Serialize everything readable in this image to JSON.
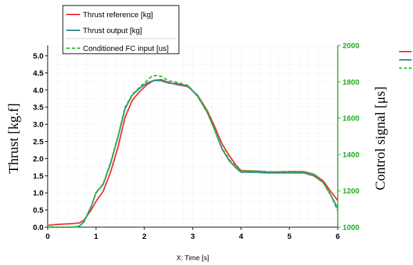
{
  "chart_data": {
    "type": "line",
    "xlabel": "X: Time [s]",
    "ylabel_left": "Thrust [kg.f]",
    "ylabel_right": "Control signal [μs]",
    "xlim": [
      0,
      6
    ],
    "ylim_left": [
      0,
      5.3
    ],
    "ylim_right": [
      1000,
      2000
    ],
    "x_ticks": [
      "0",
      "1",
      "2",
      "3",
      "4",
      "5",
      "6"
    ],
    "y_ticks_left": [
      "0.0",
      "0.5",
      "1.0",
      "1.5",
      "2.0",
      "2.5",
      "3.0",
      "3.5",
      "4.0",
      "4.5",
      "5.0"
    ],
    "y_ticks_right": [
      "1000",
      "1200",
      "1400",
      "1600",
      "1800",
      "2000"
    ],
    "grid": true,
    "legend_position": "top-left",
    "colors": {
      "reference": "#ee3333",
      "output": "#2e8b8b",
      "fc_input": "#33bb33",
      "right_axis": "#22aa22"
    },
    "series": [
      {
        "name": "Thrust reference [kg]",
        "axis": "left",
        "x": [
          0,
          0.2,
          0.5,
          0.65,
          0.75,
          0.9,
          1.0,
          1.15,
          1.3,
          1.45,
          1.6,
          1.75,
          1.9,
          2.05,
          2.2,
          2.35,
          2.5,
          2.7,
          2.9,
          3.1,
          3.3,
          3.45,
          3.6,
          3.75,
          3.9,
          4.0,
          4.3,
          4.6,
          5.0,
          5.3,
          5.5,
          5.7,
          5.85,
          6.0
        ],
        "y": [
          0.05,
          0.08,
          0.1,
          0.12,
          0.2,
          0.5,
          0.75,
          1.05,
          1.6,
          2.3,
          3.2,
          3.7,
          3.95,
          4.15,
          4.28,
          4.3,
          4.22,
          4.15,
          4.1,
          3.85,
          3.4,
          2.95,
          2.45,
          2.1,
          1.8,
          1.65,
          1.63,
          1.6,
          1.62,
          1.62,
          1.55,
          1.35,
          1.05,
          0.78
        ]
      },
      {
        "name": "Thrust output [kg]",
        "axis": "left",
        "x": [
          0,
          0.2,
          0.5,
          0.65,
          0.75,
          0.9,
          1.0,
          1.15,
          1.3,
          1.45,
          1.6,
          1.75,
          1.9,
          2.05,
          2.2,
          2.35,
          2.5,
          2.7,
          2.9,
          3.1,
          3.3,
          3.45,
          3.6,
          3.75,
          3.9,
          4.0,
          4.3,
          4.6,
          5.0,
          5.3,
          5.5,
          5.7,
          5.85,
          6.0
        ],
        "y": [
          0.0,
          0.0,
          0.0,
          0.02,
          0.15,
          0.6,
          1.0,
          1.25,
          1.85,
          2.6,
          3.45,
          3.85,
          4.05,
          4.2,
          4.28,
          4.27,
          4.2,
          4.18,
          4.12,
          3.82,
          3.35,
          2.85,
          2.3,
          1.95,
          1.72,
          1.6,
          1.6,
          1.58,
          1.58,
          1.58,
          1.5,
          1.3,
          0.95,
          0.55
        ]
      },
      {
        "name": "Conditioned FC input [us]",
        "axis": "right",
        "x": [
          0,
          0.2,
          0.5,
          0.65,
          0.75,
          0.9,
          1.0,
          1.15,
          1.3,
          1.45,
          1.6,
          1.75,
          1.9,
          2.05,
          2.15,
          2.25,
          2.35,
          2.5,
          2.7,
          2.9,
          3.1,
          3.3,
          3.45,
          3.6,
          3.75,
          3.9,
          4.0,
          4.3,
          4.6,
          5.0,
          5.3,
          5.5,
          5.7,
          5.85,
          6.0
        ],
        "y": [
          1000,
          1000,
          1000,
          1005,
          1030,
          1115,
          1190,
          1240,
          1355,
          1495,
          1660,
          1730,
          1770,
          1805,
          1830,
          1835,
          1830,
          1805,
          1795,
          1780,
          1725,
          1635,
          1540,
          1440,
          1375,
          1330,
          1310,
          1310,
          1305,
          1305,
          1305,
          1290,
          1245,
          1180,
          1090
        ]
      }
    ]
  }
}
